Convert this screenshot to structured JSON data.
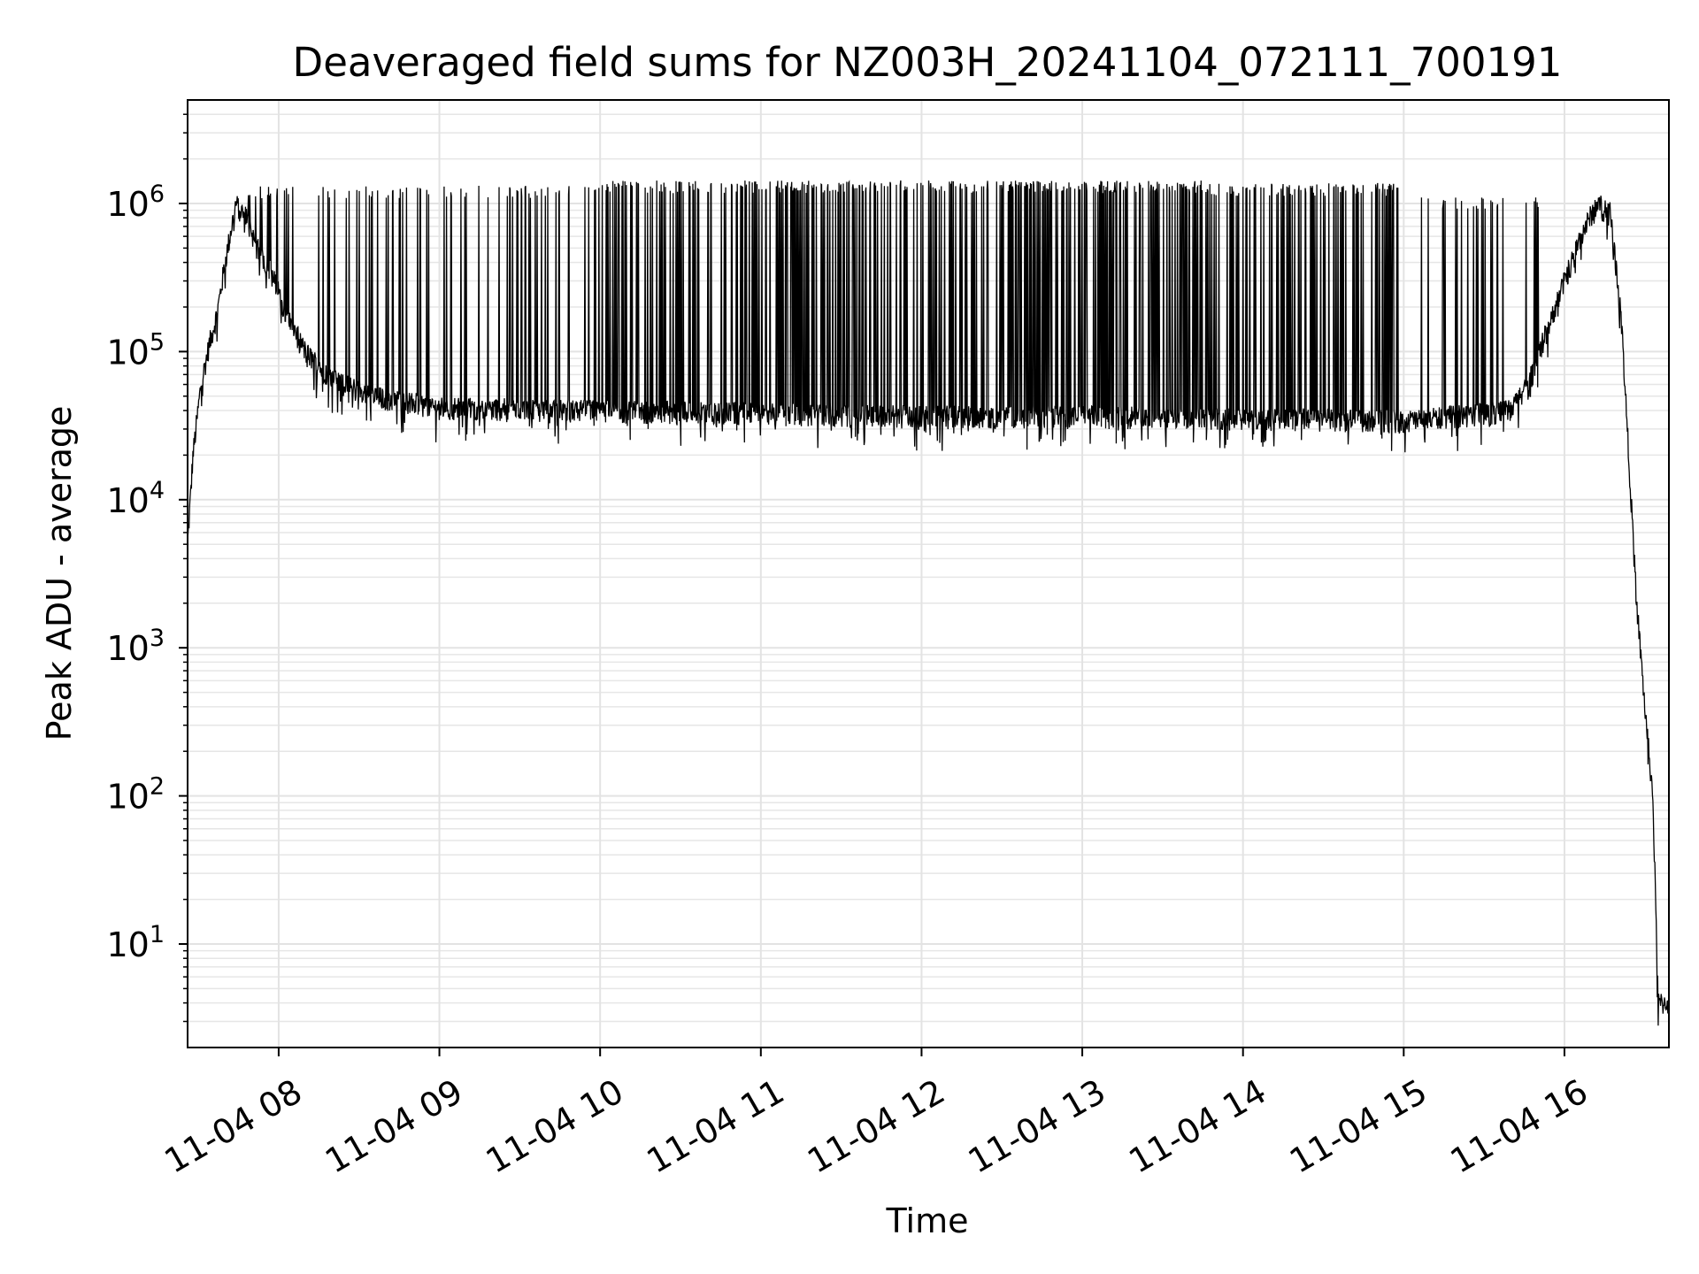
{
  "chart_data": {
    "type": "line",
    "title": "Deaveraged field sums for NZ003H_20241104_072111_700191",
    "xlabel": "Time",
    "ylabel": "Peak ADU - average",
    "yscale": "log",
    "ylim": [
      2,
      5000000
    ],
    "xlim": [
      "2024-11-04 07:26",
      "2024-11-04 16:39"
    ],
    "grid": true,
    "line_color": "#000000",
    "x_ticks": [
      {
        "x": "2024-11-04 08:00",
        "label": "11-04 08"
      },
      {
        "x": "2024-11-04 09:00",
        "label": "11-04 09"
      },
      {
        "x": "2024-11-04 10:00",
        "label": "11-04 10"
      },
      {
        "x": "2024-11-04 11:00",
        "label": "11-04 11"
      },
      {
        "x": "2024-11-04 12:00",
        "label": "11-04 12"
      },
      {
        "x": "2024-11-04 13:00",
        "label": "11-04 13"
      },
      {
        "x": "2024-11-04 14:00",
        "label": "11-04 14"
      },
      {
        "x": "2024-11-04 15:00",
        "label": "11-04 15"
      },
      {
        "x": "2024-11-04 16:00",
        "label": "11-04 16"
      }
    ],
    "y_ticks": [
      {
        "value": 10,
        "base": "10",
        "exp": "1"
      },
      {
        "value": 100,
        "base": "10",
        "exp": "2"
      },
      {
        "value": 1000,
        "base": "10",
        "exp": "3"
      },
      {
        "value": 10000,
        "base": "10",
        "exp": "4"
      },
      {
        "value": 100000,
        "base": "10",
        "exp": "5"
      },
      {
        "value": 1000000,
        "base": "10",
        "exp": "6"
      }
    ],
    "series": [
      {
        "baseline": [
          {
            "x": "2024-11-04 07:26",
            "y": 5000
          },
          {
            "x": "2024-11-04 07:28",
            "y": 20000
          },
          {
            "x": "2024-11-04 07:31",
            "y": 60000
          },
          {
            "x": "2024-11-04 07:34",
            "y": 110000
          },
          {
            "x": "2024-11-04 07:37",
            "y": 180000
          },
          {
            "x": "2024-11-04 07:40",
            "y": 400000
          },
          {
            "x": "2024-11-04 07:44",
            "y": 1000000
          },
          {
            "x": "2024-11-04 07:48",
            "y": 800000
          },
          {
            "x": "2024-11-04 07:52",
            "y": 500000
          },
          {
            "x": "2024-11-04 07:57",
            "y": 350000
          },
          {
            "x": "2024-11-04 08:03",
            "y": 180000
          },
          {
            "x": "2024-11-04 08:10",
            "y": 100000
          },
          {
            "x": "2024-11-04 08:20",
            "y": 65000
          },
          {
            "x": "2024-11-04 08:35",
            "y": 50000
          },
          {
            "x": "2024-11-04 09:00",
            "y": 42000
          },
          {
            "x": "2024-11-04 10:00",
            "y": 40000
          },
          {
            "x": "2024-11-04 12:00",
            "y": 37000
          },
          {
            "x": "2024-11-04 14:00",
            "y": 36000
          },
          {
            "x": "2024-11-04 15:00",
            "y": 34000
          },
          {
            "x": "2024-11-04 15:40",
            "y": 40000
          },
          {
            "x": "2024-11-04 15:48",
            "y": 70000
          },
          {
            "x": "2024-11-04 15:54",
            "y": 150000
          },
          {
            "x": "2024-11-04 16:00",
            "y": 300000
          },
          {
            "x": "2024-11-04 16:06",
            "y": 600000
          },
          {
            "x": "2024-11-04 16:12",
            "y": 1000000
          },
          {
            "x": "2024-11-04 16:17",
            "y": 900000
          },
          {
            "x": "2024-11-04 16:21",
            "y": 200000
          },
          {
            "x": "2024-11-04 16:24",
            "y": 20000
          },
          {
            "x": "2024-11-04 16:27",
            "y": 2000
          },
          {
            "x": "2024-11-04 16:30",
            "y": 400
          },
          {
            "x": "2024-11-04 16:33",
            "y": 100
          },
          {
            "x": "2024-11-04 16:35",
            "y": 4
          },
          {
            "x": "2024-11-04 16:39",
            "y": 4
          }
        ],
        "spike_segments": [
          {
            "from": "2024-11-04 07:47",
            "to": "2024-11-04 10:00",
            "peak": 1200000,
            "density": 0.28
          },
          {
            "from": "2024-11-04 10:00",
            "to": "2024-11-04 12:25",
            "peak": 1300000,
            "density": 0.7
          },
          {
            "from": "2024-11-04 12:25",
            "to": "2024-11-04 13:45",
            "peak": 1300000,
            "density": 0.95
          },
          {
            "from": "2024-11-04 13:45",
            "to": "2024-11-04 15:00",
            "peak": 1250000,
            "density": 0.7
          },
          {
            "from": "2024-11-04 15:00",
            "to": "2024-11-04 15:55",
            "peak": 1000000,
            "density": 0.15
          }
        ]
      }
    ]
  }
}
